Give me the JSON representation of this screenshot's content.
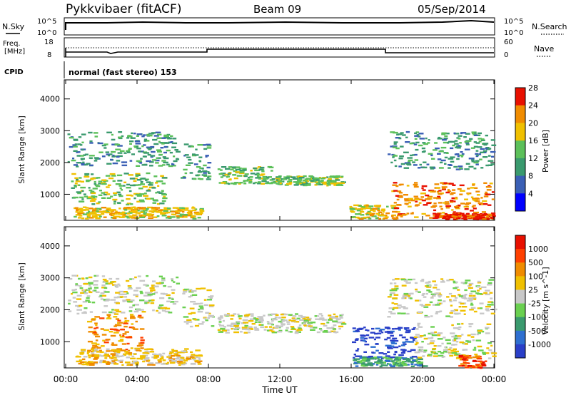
{
  "header": {
    "title": "Pykkvibaer (fitACF)",
    "beam": "Beam 09",
    "date": "05/Sep/2014"
  },
  "top_panels": {
    "nsky_label": "N.Sky",
    "nsearch_label": "N.Search",
    "noise_ticks_left": [
      "10^5",
      "10^0"
    ],
    "noise_ticks_right": [
      "10^5",
      "10^0"
    ],
    "freq_label_1": "Freq.",
    "freq_label_2": "[MHz]",
    "freq_ticks": [
      "18",
      "8"
    ],
    "nave_label": "Nave",
    "nave_ticks": [
      "60",
      "0"
    ],
    "cpid_label": "CPID",
    "cpid_text": "normal (fast stereo) 153"
  },
  "chart_data": [
    {
      "type": "heatmap",
      "name": "power",
      "ylabel": "Slant Range [km]",
      "ylim": [
        180,
        4600
      ],
      "yticks": [
        1000,
        2000,
        3000,
        4000
      ],
      "colorbar_label": "Power [dB]",
      "colorbar_ticks": [
        "4",
        "8",
        "12",
        "16",
        "20",
        "24",
        "28"
      ],
      "colors": [
        "#0000ff",
        "#3a5fb5",
        "#3a9a6e",
        "#5cc05a",
        "#f0c000",
        "#f08c00",
        "#e81000"
      ],
      "bands": [
        {
          "t": [
            0.1,
            6.2
          ],
          "r": [
            1900,
            3000
          ],
          "level": 2
        },
        {
          "t": [
            0.3,
            5.5
          ],
          "r": [
            700,
            1700
          ],
          "level": 3
        },
        {
          "t": [
            0.4,
            7.6
          ],
          "r": [
            260,
            620
          ],
          "level": 4
        },
        {
          "t": [
            6.4,
            8.0
          ],
          "r": [
            1500,
            2600
          ],
          "level": 2
        },
        {
          "t": [
            8.5,
            11.5
          ],
          "r": [
            1350,
            1900
          ],
          "level": 3
        },
        {
          "t": [
            11.5,
            15.5
          ],
          "r": [
            1300,
            1600
          ],
          "level": 3
        },
        {
          "t": [
            15.9,
            18.5
          ],
          "r": [
            250,
            700
          ],
          "level": 4
        },
        {
          "t": [
            18.2,
            23.9
          ],
          "r": [
            250,
            1400
          ],
          "level": 5
        },
        {
          "t": [
            18.0,
            23.9
          ],
          "r": [
            1800,
            3000
          ],
          "level": 2
        },
        {
          "t": [
            20.5,
            23.9
          ],
          "r": [
            240,
            420
          ],
          "level": 6
        }
      ]
    },
    {
      "type": "heatmap",
      "name": "velocity",
      "ylabel": "Slant Range [km]",
      "ylim": [
        180,
        4600
      ],
      "yticks": [
        1000,
        2000,
        3000,
        4000
      ],
      "xlabel": "Time UT",
      "xticks": [
        "00:00",
        "04:00",
        "08:00",
        "12:00",
        "16:00",
        "20:00",
        "00:00"
      ],
      "colorbar_label": "Velocity [m s^-1]",
      "colorbar_ticks": [
        "1000",
        "500",
        "100",
        "25",
        "-25",
        "-100",
        "-500",
        "-1000"
      ],
      "colors": [
        "#2a3fc8",
        "#2e6fd0",
        "#3a9a6e",
        "#6ad050",
        "#c8c8c8",
        "#f0c000",
        "#f08c00",
        "#ff4000",
        "#e81000"
      ],
      "bands": [
        {
          "t": [
            0.1,
            6.2
          ],
          "r": [
            1900,
            3100
          ],
          "level": 4
        },
        {
          "t": [
            1.2,
            4.2
          ],
          "r": [
            700,
            1900
          ],
          "level": 6
        },
        {
          "t": [
            0.5,
            7.5
          ],
          "r": [
            300,
            800
          ],
          "level": 5
        },
        {
          "t": [
            6.5,
            8.2
          ],
          "r": [
            1500,
            2700
          ],
          "level": 4
        },
        {
          "t": [
            8.5,
            15.5
          ],
          "r": [
            1300,
            1900
          ],
          "level": 4
        },
        {
          "t": [
            16.0,
            19.5
          ],
          "r": [
            500,
            1500
          ],
          "level": 0
        },
        {
          "t": [
            16.0,
            20.0
          ],
          "r": [
            250,
            550
          ],
          "level": 2
        },
        {
          "t": [
            19.5,
            23.9
          ],
          "r": [
            500,
            1600
          ],
          "level": 4
        },
        {
          "t": [
            18.0,
            23.9
          ],
          "r": [
            1800,
            3000
          ],
          "level": 4
        },
        {
          "t": [
            22.0,
            23.5
          ],
          "r": [
            200,
            600
          ],
          "level": 7
        }
      ]
    }
  ]
}
